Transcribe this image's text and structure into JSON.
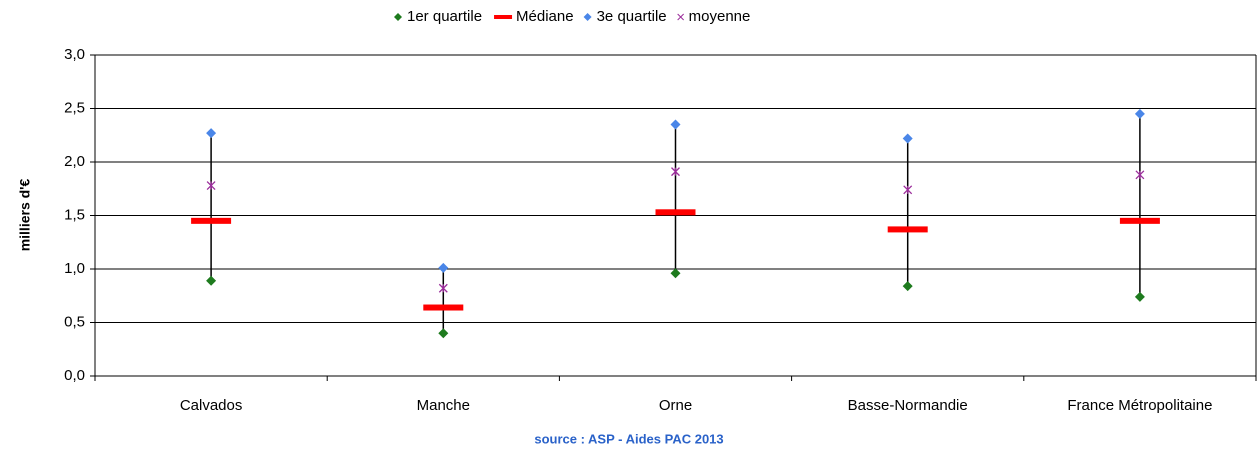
{
  "chart_data": {
    "type": "stat-range",
    "categories": [
      "Calvados",
      "Manche",
      "Orne",
      "Basse-Normandie",
      "France Métropolitaine"
    ],
    "series": [
      {
        "name": "1er quartile",
        "color": "#1e7b1e",
        "marker": "diamond",
        "values": [
          0.89,
          0.4,
          0.96,
          0.84,
          0.74
        ]
      },
      {
        "name": "Médiane",
        "color": "#ff0000",
        "marker": "dash",
        "values": [
          1.45,
          0.64,
          1.53,
          1.37,
          1.45
        ]
      },
      {
        "name": "3e quartile",
        "color": "#4a86e8",
        "marker": "diamond",
        "values": [
          2.27,
          1.01,
          2.35,
          2.22,
          2.45
        ]
      },
      {
        "name": "moyenne",
        "color": "#9b2d9b",
        "marker": "x",
        "values": [
          1.78,
          0.82,
          1.91,
          1.74,
          1.88
        ]
      }
    ],
    "y_label": "milliers d'€",
    "ylim": [
      0,
      3
    ],
    "yticks": [
      {
        "value": 0,
        "label": "0,0"
      },
      {
        "value": 0.5,
        "label": "0,5"
      },
      {
        "value": 1,
        "label": "1,0"
      },
      {
        "value": 1.5,
        "label": "1,5"
      },
      {
        "value": 2,
        "label": "2,0"
      },
      {
        "value": 2.5,
        "label": "2,5"
      },
      {
        "value": 3,
        "label": "3,0"
      }
    ],
    "grid": true,
    "legend": "top",
    "source": "source : ASP - Aides PAC 2013"
  }
}
